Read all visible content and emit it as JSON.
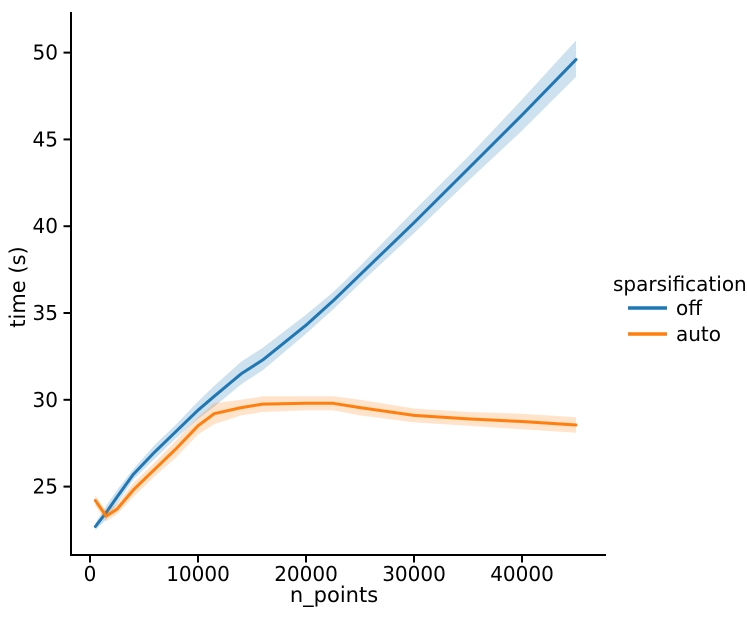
{
  "figure": {
    "background": "#ffffff",
    "text_color": "#000000",
    "spine_color": "#000000"
  },
  "chart_data": {
    "type": "line",
    "title": "",
    "xlabel": "n_points",
    "ylabel": "time (s)",
    "x_ticks": [
      0,
      10000,
      20000,
      30000,
      40000
    ],
    "y_ticks": [
      25,
      30,
      35,
      40,
      45,
      50
    ],
    "xlim": [
      -1759,
      47776
    ],
    "ylim": [
      21.06,
      52.34
    ],
    "grid": false,
    "legend": {
      "title": "sparsification",
      "position": "right-outside"
    },
    "x": [
      500,
      1500,
      2500,
      4000,
      6000,
      8000,
      10000,
      11500,
      14000,
      16000,
      20000,
      22500,
      25000,
      30000,
      35000,
      40000,
      45000
    ],
    "series": [
      {
        "name": "off",
        "color": "#1f77b4",
        "band_alpha": 0.22,
        "values": [
          22.7,
          23.5,
          24.4,
          25.7,
          27.0,
          28.2,
          29.4,
          30.2,
          31.5,
          32.3,
          34.3,
          35.7,
          37.2,
          40.2,
          43.3,
          46.4,
          49.6
        ],
        "lower": [
          22.5,
          23.1,
          24.0,
          25.4,
          26.6,
          27.8,
          28.9,
          29.6,
          30.9,
          31.7,
          33.8,
          35.2,
          36.7,
          39.6,
          42.6,
          45.5,
          48.6
        ],
        "upper": [
          22.9,
          23.9,
          24.8,
          26.0,
          27.4,
          28.6,
          29.9,
          30.8,
          32.2,
          33.0,
          34.9,
          36.2,
          37.7,
          40.9,
          44.0,
          47.3,
          50.7
        ]
      },
      {
        "name": "auto",
        "color": "#ff7f0e",
        "band_alpha": 0.22,
        "values": [
          24.2,
          23.3,
          23.7,
          24.8,
          26.0,
          27.2,
          28.5,
          29.2,
          29.55,
          29.75,
          29.8,
          29.8,
          29.55,
          29.1,
          28.9,
          28.75,
          28.55
        ],
        "lower": [
          23.9,
          23.0,
          23.4,
          24.4,
          25.6,
          26.7,
          28.0,
          28.6,
          29.1,
          29.3,
          29.4,
          29.4,
          29.1,
          28.7,
          28.5,
          28.3,
          28.1
        ],
        "upper": [
          24.5,
          23.6,
          24.0,
          25.2,
          26.4,
          27.7,
          29.0,
          29.8,
          30.0,
          30.2,
          30.2,
          30.2,
          30.0,
          29.5,
          29.3,
          29.2,
          29.0
        ]
      }
    ]
  }
}
